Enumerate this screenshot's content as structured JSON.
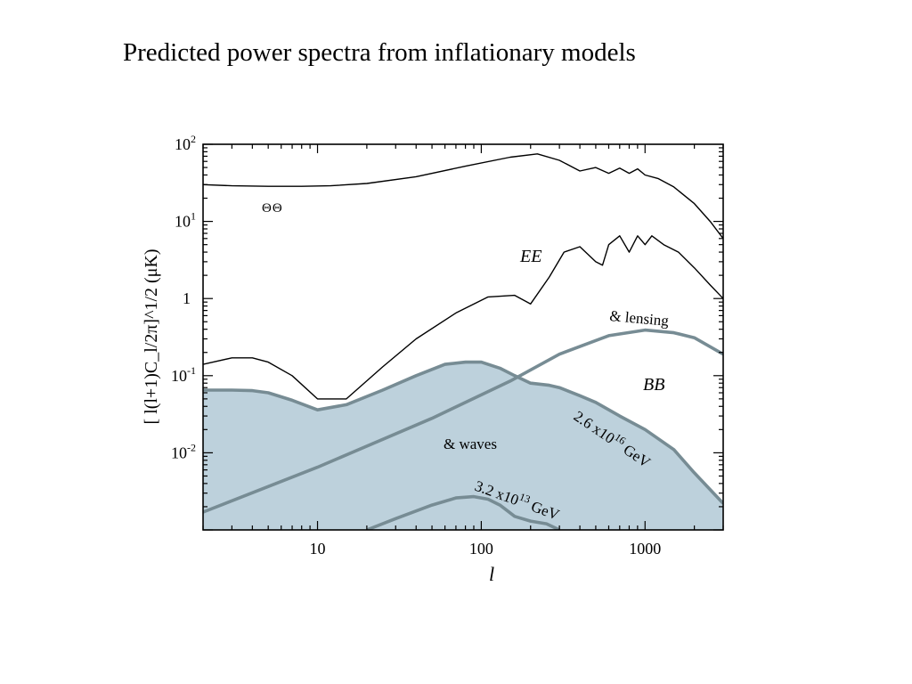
{
  "page": {
    "title": "Predicted power spectra from inflationary models"
  },
  "chart_data": {
    "type": "line",
    "x_scale": "log",
    "y_scale": "log",
    "xlim": [
      2,
      3000
    ],
    "ylim": [
      0.001,
      100
    ],
    "xlabel": "l",
    "ylabel": "[ l(l+1)C_l/2π]^1/2 (μK)",
    "x_ticks": [
      {
        "value": 10,
        "label": "10"
      },
      {
        "value": 100,
        "label": "100"
      },
      {
        "value": 1000,
        "label": "1000"
      }
    ],
    "y_ticks": [
      {
        "value": 100,
        "base": "10",
        "exp": "2"
      },
      {
        "value": 10,
        "base": "10",
        "exp": "1"
      },
      {
        "value": 1,
        "base": "1",
        "exp": ""
      },
      {
        "value": 0.1,
        "base": "10",
        "exp": "-1"
      },
      {
        "value": 0.01,
        "base": "10",
        "exp": "-2"
      }
    ],
    "series": [
      {
        "name": "ΘΘ",
        "color": "#000000",
        "x": [
          2,
          3,
          5,
          8,
          12,
          20,
          40,
          80,
          150,
          220,
          300,
          400,
          500,
          600,
          700,
          800,
          900,
          1000,
          1200,
          1500,
          2000,
          2500,
          3000
        ],
        "y": [
          30,
          29,
          28.5,
          28.5,
          29,
          31,
          38,
          52,
          68,
          75,
          62,
          45,
          50,
          42,
          49,
          42,
          48,
          40,
          36,
          28,
          17,
          10,
          6
        ]
      },
      {
        "name": "EE",
        "color": "#000000",
        "x": [
          2,
          3,
          4,
          5,
          7,
          10,
          15,
          25,
          40,
          70,
          110,
          160,
          200,
          260,
          320,
          400,
          500,
          550,
          600,
          700,
          800,
          900,
          1000,
          1100,
          1300,
          1600,
          2000,
          2500,
          3000
        ],
        "y": [
          0.14,
          0.17,
          0.17,
          0.15,
          0.1,
          0.05,
          0.05,
          0.13,
          0.3,
          0.65,
          1.05,
          1.1,
          0.85,
          1.9,
          4,
          4.7,
          3,
          2.7,
          5,
          6.5,
          4,
          6.5,
          5,
          6.5,
          5,
          4,
          2.5,
          1.5,
          1.0
        ]
      },
      {
        "name": "& lensing",
        "color": "#778c94",
        "x": [
          2,
          10,
          50,
          150,
          300,
          600,
          1000,
          1500,
          2000,
          3000
        ],
        "y": [
          0.0017,
          0.0065,
          0.028,
          0.085,
          0.19,
          0.33,
          0.39,
          0.36,
          0.31,
          0.19
        ]
      },
      {
        "name": "& waves 2.6x10^16 GeV",
        "color": "#778c94",
        "fill": "#bdd1dc",
        "x": [
          2,
          3,
          4,
          5,
          7,
          10,
          15,
          25,
          40,
          60,
          80,
          100,
          130,
          160,
          200,
          260,
          300,
          400,
          500,
          700,
          1000,
          1500,
          2000,
          3000
        ],
        "y": [
          0.065,
          0.065,
          0.064,
          0.06,
          0.048,
          0.036,
          0.042,
          0.065,
          0.1,
          0.14,
          0.15,
          0.15,
          0.125,
          0.1,
          0.08,
          0.075,
          0.07,
          0.055,
          0.045,
          0.03,
          0.02,
          0.011,
          0.0055,
          0.0022
        ]
      },
      {
        "name": "3.2x10^13 GeV",
        "color": "#778c94",
        "x": [
          20,
          30,
          50,
          70,
          90,
          110,
          130,
          160,
          200,
          250,
          300
        ],
        "y": [
          0.001,
          0.0014,
          0.0021,
          0.0026,
          0.0027,
          0.0025,
          0.0021,
          0.0015,
          0.0013,
          0.0012,
          0.001
        ]
      }
    ],
    "annotations": {
      "tt": "ΘΘ",
      "ee": "EE",
      "bb": "BB",
      "lensing": "& lensing",
      "waves": "& waves",
      "high_scale": "2.6 x10",
      "high_scale_exp": "16",
      "high_scale_unit": "GeV",
      "low_scale": "3.2 x10",
      "low_scale_exp": "13",
      "low_scale_unit": "GeV"
    }
  }
}
